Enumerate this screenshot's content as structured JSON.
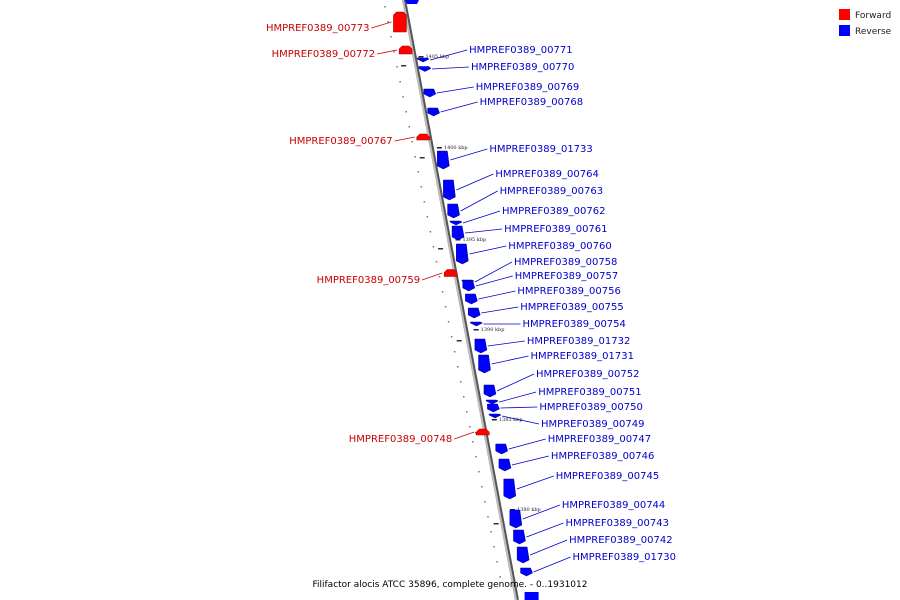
{
  "caption": "Filifactor alocis ATCC 35896, complete genome. - 0..1931012",
  "legend": [
    {
      "label": "Forward",
      "color": "#ff0000"
    },
    {
      "label": "Reverse",
      "color": "#0000ff"
    }
  ],
  "colors": {
    "forward": "#ff0000",
    "reverse": "#0000ff",
    "forward_text": "#cc0000",
    "reverse_text": "#0000cc",
    "backbone": "#999999"
  },
  "scale_labels": [
    "1405 kbp",
    "1400 kbp",
    "1395 kbp",
    "1390 kbp",
    "1385 kbp",
    "1380 kbp"
  ],
  "forward_genes": [
    "HMPREF0389_00773",
    "HMPREF0389_00772",
    "HMPREF0389_00767",
    "HMPREF0389_00759",
    "HMPREF0389_00748"
  ],
  "reverse_genes": [
    "HMPREF0389_00771",
    "HMPREF0389_00770",
    "HMPREF0389_00769",
    "HMPREF0389_00768",
    "HMPREF0389_01733",
    "HMPREF0389_00764",
    "HMPREF0389_00763",
    "HMPREF0389_00762",
    "HMPREF0389_00761",
    "HMPREF0389_00760",
    "HMPREF0389_00758",
    "HMPREF0389_00757",
    "HMPREF0389_00756",
    "HMPREF0389_00755",
    "HMPREF0389_00754",
    "HMPREF0389_01732",
    "HMPREF0389_01731",
    "HMPREF0389_00752",
    "HMPREF0389_00751",
    "HMPREF0389_00750",
    "HMPREF0389_00749",
    "HMPREF0389_00747",
    "HMPREF0389_00746",
    "HMPREF0389_00745",
    "HMPREF0389_00744",
    "HMPREF0389_00743",
    "HMPREF0389_00742",
    "HMPREF0389_01730"
  ]
}
